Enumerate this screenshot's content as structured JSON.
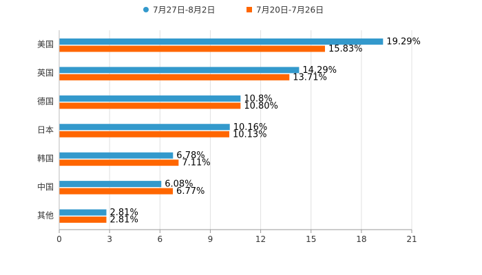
{
  "chart_data": {
    "type": "bar",
    "orientation": "horizontal",
    "categories": [
      "美国",
      "英国",
      "德国",
      "日本",
      "韩国",
      "中国",
      "其他"
    ],
    "series": [
      {
        "name": "7月27日-8月2日",
        "color": "#3399cc",
        "values": [
          19.29,
          14.29,
          10.8,
          10.16,
          6.78,
          6.08,
          2.81
        ],
        "labels": [
          "19.29%",
          "14.29%",
          "10.8%",
          "10.16%",
          "6.78%",
          "6.08%",
          "2.81%"
        ]
      },
      {
        "name": "7月20日-7月26日",
        "color": "#ff6600",
        "values": [
          15.83,
          13.71,
          10.8,
          10.13,
          7.11,
          6.77,
          2.81
        ],
        "labels": [
          "15.83%",
          "13.71%",
          "10.80%",
          "10.13%",
          "7.11%",
          "6.77%",
          "2.81%"
        ]
      }
    ],
    "xlim": [
      0,
      21
    ],
    "xticks": [
      0,
      3,
      6,
      9,
      12,
      15,
      18,
      21
    ],
    "tick_labels": [
      "0",
      "3",
      "6",
      "9",
      "12",
      "15",
      "18",
      "21"
    ],
    "grid": true,
    "legend_position": "top-center",
    "title": "",
    "xlabel": "",
    "ylabel": ""
  }
}
